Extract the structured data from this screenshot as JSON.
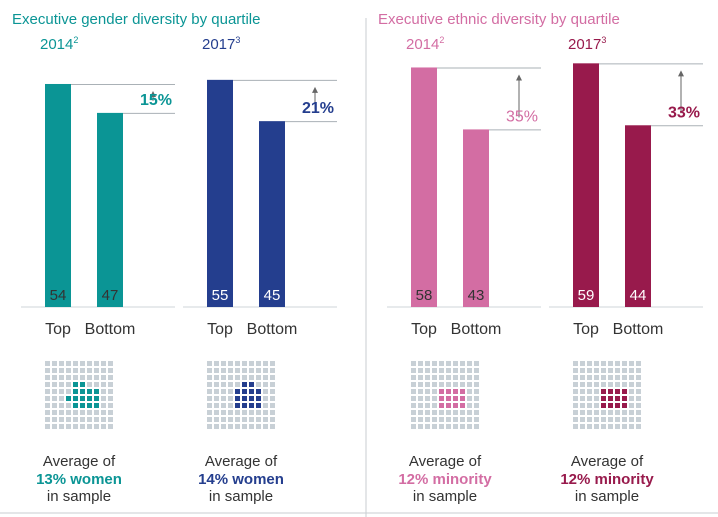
{
  "colors": {
    "teal": "#0b9595",
    "navy": "#243e8e",
    "pink": "#d36da3",
    "maroon": "#981a4c",
    "grid_dot": "#c8d0d6",
    "rule": "#aab1b6",
    "text": "#333333"
  },
  "chart_data": [
    {
      "type": "bar",
      "title": "Executive gender diversity by quartile",
      "title_color": "#0b9595",
      "panels": [
        {
          "year": "2014",
          "footnote": "2",
          "color": "#0b9595",
          "categories": [
            "Top",
            "Bottom"
          ],
          "values": [
            54,
            47
          ],
          "difference_label": "15%",
          "sample": {
            "line1": "Average of",
            "line2": "13% women",
            "line3": "in sample",
            "highlighted_dots": 13
          }
        },
        {
          "year": "2017",
          "footnote": "3",
          "color": "#243e8e",
          "categories": [
            "Top",
            "Bottom"
          ],
          "values": [
            55,
            45
          ],
          "difference_label": "21%",
          "sample": {
            "line1": "Average of",
            "line2": "14% women",
            "line3": "in sample",
            "highlighted_dots": 14
          }
        }
      ]
    },
    {
      "type": "bar",
      "title": "Executive ethnic diversity by quartile",
      "title_color": "#d36da3",
      "panels": [
        {
          "year": "2014",
          "footnote": "2",
          "color": "#d36da3",
          "categories": [
            "Top",
            "Bottom"
          ],
          "values": [
            58,
            43
          ],
          "difference_label": "35%",
          "sample": {
            "line1": "Average of",
            "line2": "12% minority",
            "line3": "in sample",
            "highlighted_dots": 12
          }
        },
        {
          "year": "2017",
          "footnote": "3",
          "color": "#981a4c",
          "categories": [
            "Top",
            "Bottom"
          ],
          "values": [
            59,
            44
          ],
          "difference_label": "33%",
          "sample": {
            "line1": "Average of",
            "line2": "12% minority",
            "line3": "in sample",
            "highlighted_dots": 12
          }
        }
      ]
    }
  ]
}
